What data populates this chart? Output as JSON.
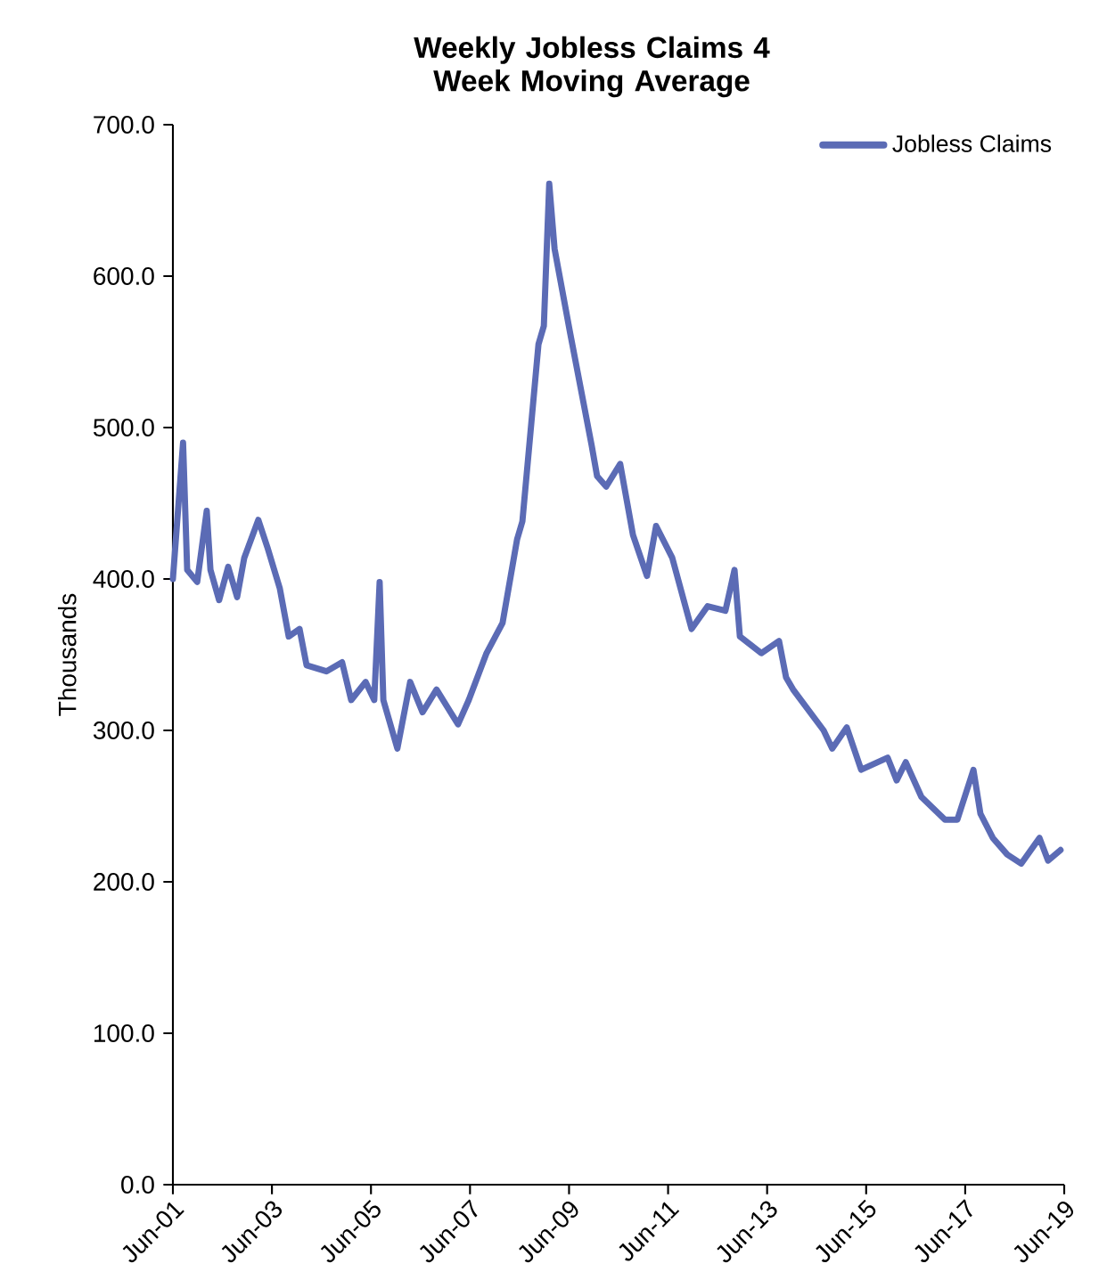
{
  "chart_data": {
    "type": "line",
    "title": "Weekly Jobless Claims 4 Week Moving Average",
    "ylabel": "Thousands",
    "x": [
      "2001-06-01",
      "2001-08-15",
      "2001-09-15",
      "2001-11-28",
      "2002-02-07",
      "2002-03-04",
      "2002-05-07",
      "2002-07-13",
      "2002-09-18",
      "2002-11-10",
      "2003-02-22",
      "2003-04-28",
      "2003-07-28",
      "2003-10-03",
      "2003-12-22",
      "2004-02-13",
      "2004-07-07",
      "2004-11-01",
      "2005-01-07",
      "2005-04-22",
      "2005-06-25",
      "2005-08-04",
      "2005-09-01",
      "2005-12-13",
      "2006-03-16",
      "2006-06-16",
      "2006-09-28",
      "2007-03-04",
      "2007-05-22",
      "2007-10-01",
      "2008-01-28",
      "2008-05-13",
      "2008-06-22",
      "2008-10-19",
      "2008-11-28",
      "2009-01-07",
      "2009-02-16",
      "2009-06-10",
      "2009-11-16",
      "2009-12-25",
      "2010-03-01",
      "2010-06-13",
      "2010-09-16",
      "2010-12-28",
      "2011-03-04",
      "2011-07-01",
      "2011-11-22",
      "2012-03-19",
      "2012-07-28",
      "2012-10-04",
      "2012-11-13",
      "2013-04-19",
      "2013-08-28",
      "2013-10-19",
      "2013-12-10",
      "2014-07-22",
      "2014-09-25",
      "2015-01-10",
      "2015-04-25",
      "2015-11-07",
      "2016-01-13",
      "2016-03-19",
      "2016-07-13",
      "2017-01-04",
      "2017-04-04",
      "2017-08-01",
      "2017-09-22",
      "2017-12-22",
      "2018-04-07",
      "2018-07-19",
      "2018-12-01",
      "2019-02-04",
      "2019-05-04"
    ],
    "series": [
      {
        "name": "Jobless Claims",
        "color": "#5b6bb5",
        "values": [
          400,
          490,
          406,
          398,
          445,
          406,
          386,
          408,
          388,
          414,
          439,
          421,
          394,
          362,
          367,
          343,
          339,
          345,
          320,
          332,
          320,
          398,
          320,
          288,
          332,
          312,
          327,
          304,
          320,
          351,
          371,
          426,
          438,
          555,
          567,
          661,
          618,
          562,
          488,
          468,
          461,
          476,
          429,
          402,
          435,
          414,
          367,
          382,
          379,
          406,
          362,
          351,
          359,
          335,
          327,
          300,
          288,
          302,
          274,
          282,
          267,
          279,
          256,
          241,
          241,
          274,
          245,
          229,
          218,
          212,
          229,
          214,
          221
        ]
      }
    ],
    "xlim": [
      "2001-06-01",
      "2019-06-01"
    ],
    "xticks": [
      {
        "value": "2001-06-01",
        "label": "Jun-01"
      },
      {
        "value": "2003-06-01",
        "label": "Jun-03"
      },
      {
        "value": "2005-06-01",
        "label": "Jun-05"
      },
      {
        "value": "2007-06-01",
        "label": "Jun-07"
      },
      {
        "value": "2009-06-01",
        "label": "Jun-09"
      },
      {
        "value": "2011-06-01",
        "label": "Jun-11"
      },
      {
        "value": "2013-06-01",
        "label": "Jun-13"
      },
      {
        "value": "2015-06-01",
        "label": "Jun-15"
      },
      {
        "value": "2017-06-01",
        "label": "Jun-17"
      },
      {
        "value": "2019-06-01",
        "label": "Jun-19"
      }
    ],
    "ylim": [
      0,
      700
    ],
    "yticks": [
      {
        "value": 0,
        "label": "0.0"
      },
      {
        "value": 100,
        "label": "100.0"
      },
      {
        "value": 200,
        "label": "200.0"
      },
      {
        "value": 300,
        "label": "300.0"
      },
      {
        "value": 400,
        "label": "400.0"
      },
      {
        "value": 500,
        "label": "500.0"
      },
      {
        "value": 600,
        "label": "600.0"
      },
      {
        "value": 700,
        "label": "700.0"
      }
    ],
    "grid": false,
    "legend": "top right",
    "marker": "none",
    "line_style": "solid"
  }
}
